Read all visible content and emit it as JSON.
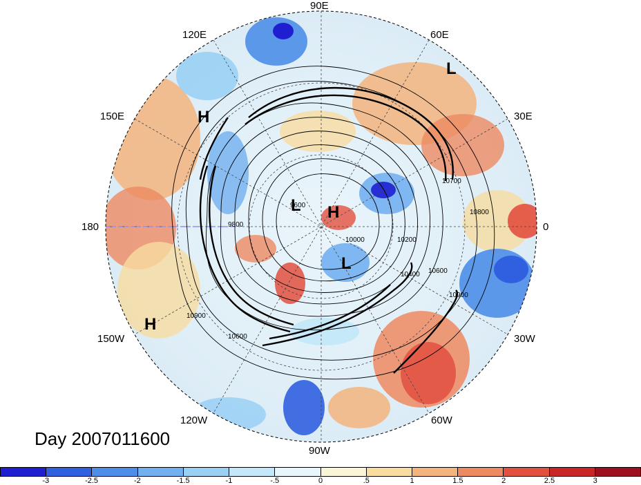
{
  "title": "Day 2007011600",
  "longitude_labels": {
    "n90e": "90E",
    "n120e": "120E",
    "n60e": "60E",
    "n150e": "150E",
    "n30e": "30E",
    "n180": "180",
    "n0": "0",
    "n150w": "150W",
    "n30w": "30W",
    "n120w": "120W",
    "n60w": "60W",
    "n90w": "90W"
  },
  "pressure_centers": [
    {
      "name": "center-h-150e",
      "label": "H"
    },
    {
      "name": "center-l-60e",
      "label": "L"
    },
    {
      "name": "center-l-pole",
      "label": "L"
    },
    {
      "name": "center-h-pole",
      "label": "H"
    },
    {
      "name": "center-l-greenland",
      "label": "L"
    },
    {
      "name": "center-h-150w",
      "label": "H"
    }
  ],
  "contour_labels": [
    "9600",
    "9800",
    "10000",
    "10200",
    "10400",
    "10600",
    "10700",
    "10800",
    "10900",
    "10600",
    "10900"
  ],
  "colorbar": {
    "ticks": [
      "-3",
      "-2.5",
      "-2",
      "-1.5",
      "-1",
      "-.5",
      "0",
      ".5",
      "1",
      "1.5",
      "2",
      "2.5",
      "3"
    ],
    "colors": [
      "#1f1fd1",
      "#3060e0",
      "#4e8ee8",
      "#72b0f0",
      "#9ad0f4",
      "#c2e8fa",
      "#e8f6fb",
      "#fbf5d8",
      "#f8dca0",
      "#f3b47e",
      "#ee8a62",
      "#e2503f",
      "#c92727",
      "#9e1020"
    ]
  }
}
